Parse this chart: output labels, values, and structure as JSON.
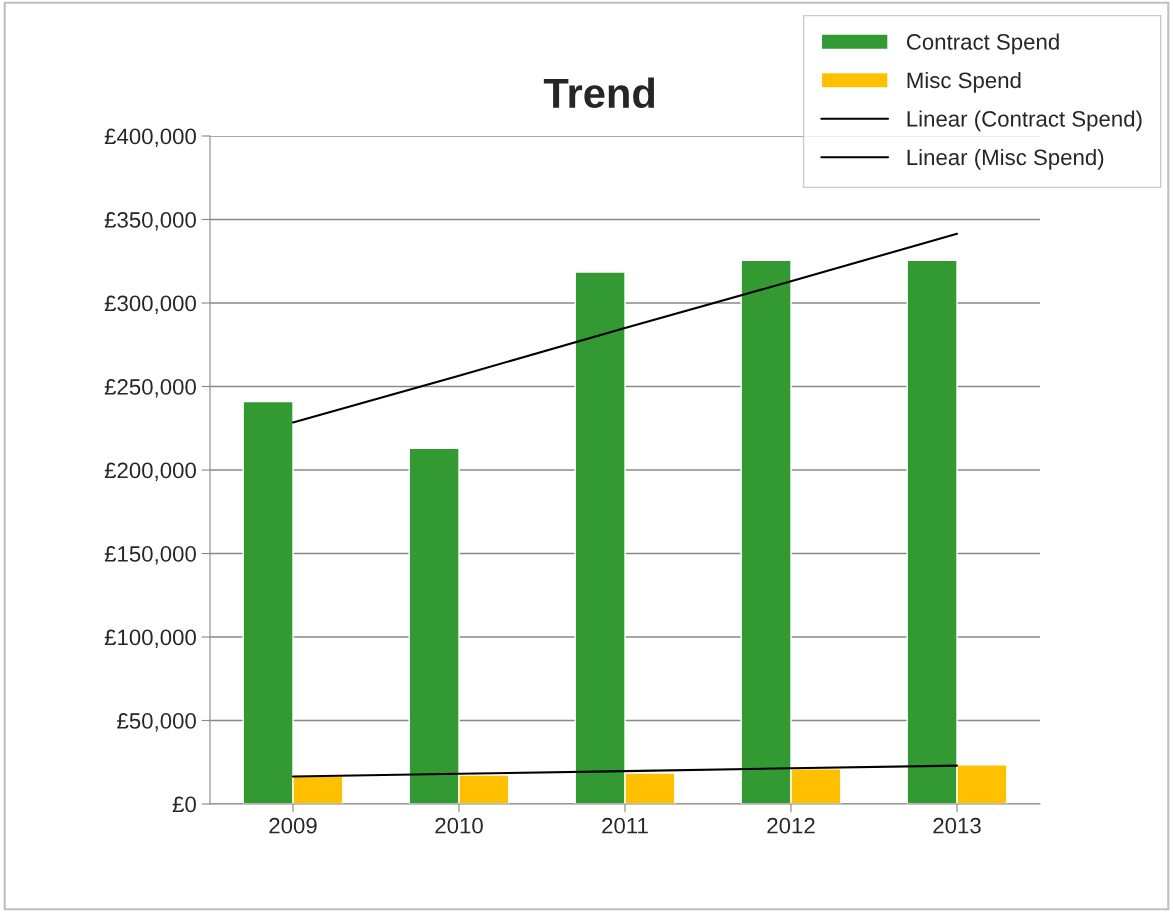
{
  "chart_data": {
    "type": "bar",
    "title": "Trend",
    "categories": [
      "2009",
      "2010",
      "2011",
      "2012",
      "2013"
    ],
    "series": [
      {
        "name": "Contract Spend",
        "color": "#339933",
        "values": [
          241000,
          213000,
          318500,
          325500,
          325500
        ]
      },
      {
        "name": "Misc Spend",
        "color": "#ffc000",
        "values": [
          16800,
          17400,
          18600,
          21000,
          23400
        ]
      },
      {
        "name": "Linear (Contract Spend)",
        "type": "line",
        "color": "#000000",
        "values": [
          228500,
          256500,
          285000,
          313000,
          341500
        ]
      },
      {
        "name": "Linear (Misc Spend)",
        "type": "line",
        "color": "#000000",
        "values": [
          16500,
          18100,
          19700,
          21400,
          23000
        ]
      }
    ],
    "ylim": [
      0,
      400000
    ],
    "yticks": [
      {
        "value": 0,
        "label": "£0"
      },
      {
        "value": 50000,
        "label": "£50,000"
      },
      {
        "value": 100000,
        "label": "£100,000"
      },
      {
        "value": 150000,
        "label": "£150,000"
      },
      {
        "value": 200000,
        "label": "£200,000"
      },
      {
        "value": 250000,
        "label": "£250,000"
      },
      {
        "value": 300000,
        "label": "£300,000"
      },
      {
        "value": 350000,
        "label": "£350,000"
      },
      {
        "value": 400000,
        "label": "£400,000"
      }
    ],
    "grid": "y",
    "legend": "top right"
  }
}
